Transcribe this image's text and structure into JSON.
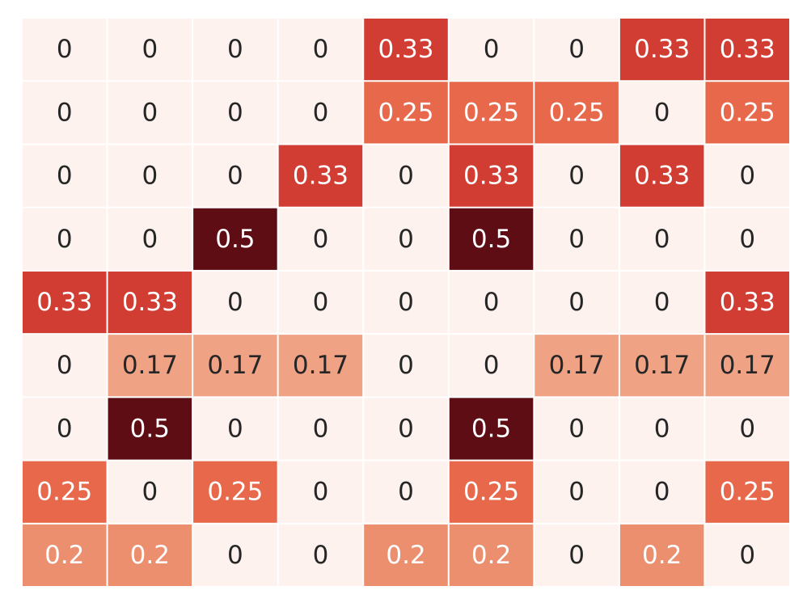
{
  "chart_data": {
    "type": "heatmap",
    "title": "",
    "xlabel": "",
    "ylabel": "",
    "rows": 9,
    "cols": 9,
    "values": [
      [
        0,
        0,
        0,
        0,
        0.33,
        0,
        0,
        0.33,
        0.33
      ],
      [
        0,
        0,
        0,
        0,
        0.25,
        0.25,
        0.25,
        0,
        0.25
      ],
      [
        0,
        0,
        0,
        0.33,
        0,
        0.33,
        0,
        0.33,
        0
      ],
      [
        0,
        0,
        0.5,
        0,
        0,
        0.5,
        0,
        0,
        0
      ],
      [
        0.33,
        0.33,
        0,
        0,
        0,
        0,
        0,
        0,
        0.33
      ],
      [
        0,
        0.17,
        0.17,
        0.17,
        0,
        0,
        0.17,
        0.17,
        0.17
      ],
      [
        0,
        0.5,
        0,
        0,
        0,
        0.5,
        0,
        0,
        0
      ],
      [
        0.25,
        0,
        0.25,
        0,
        0,
        0.25,
        0,
        0,
        0.25
      ],
      [
        0.2,
        0.2,
        0,
        0,
        0.2,
        0.2,
        0,
        0.2,
        0
      ]
    ],
    "labels": [
      [
        "0",
        "0",
        "0",
        "0",
        "0.33",
        "0",
        "0",
        "0.33",
        "0.33"
      ],
      [
        "0",
        "0",
        "0",
        "0",
        "0.25",
        "0.25",
        "0.25",
        "0",
        "0.25"
      ],
      [
        "0",
        "0",
        "0",
        "0.33",
        "0",
        "0.33",
        "0",
        "0.33",
        "0"
      ],
      [
        "0",
        "0",
        "0.5",
        "0",
        "0",
        "0.5",
        "0",
        "0",
        "0"
      ],
      [
        "0.33",
        "0.33",
        "0",
        "0",
        "0",
        "0",
        "0",
        "0",
        "0.33"
      ],
      [
        "0",
        "0.17",
        "0.17",
        "0.17",
        "0",
        "0",
        "0.17",
        "0.17",
        "0.17"
      ],
      [
        "0",
        "0.5",
        "0",
        "0",
        "0",
        "0.5",
        "0",
        "0",
        "0"
      ],
      [
        "0.25",
        "0",
        "0.25",
        "0",
        "0",
        "0.25",
        "0",
        "0",
        "0.25"
      ],
      [
        "0.2",
        "0.2",
        "0",
        "0",
        "0.2",
        "0.2",
        "0",
        "0.2",
        "0"
      ]
    ],
    "colormap": "Reds",
    "vmin": 0,
    "vmax": 0.5,
    "colors": {
      "0": "#fdf2ee",
      "0.17": "#f0a285",
      "0.2": "#eb8f6f",
      "0.25": "#e8684b",
      "0.33": "#d13d32",
      "0.5": "#5d0d13"
    },
    "text_colors": {
      "dark": "#262626",
      "light": "#ffffff"
    },
    "grid_line_color": "#ffffff",
    "colorbar": false
  }
}
